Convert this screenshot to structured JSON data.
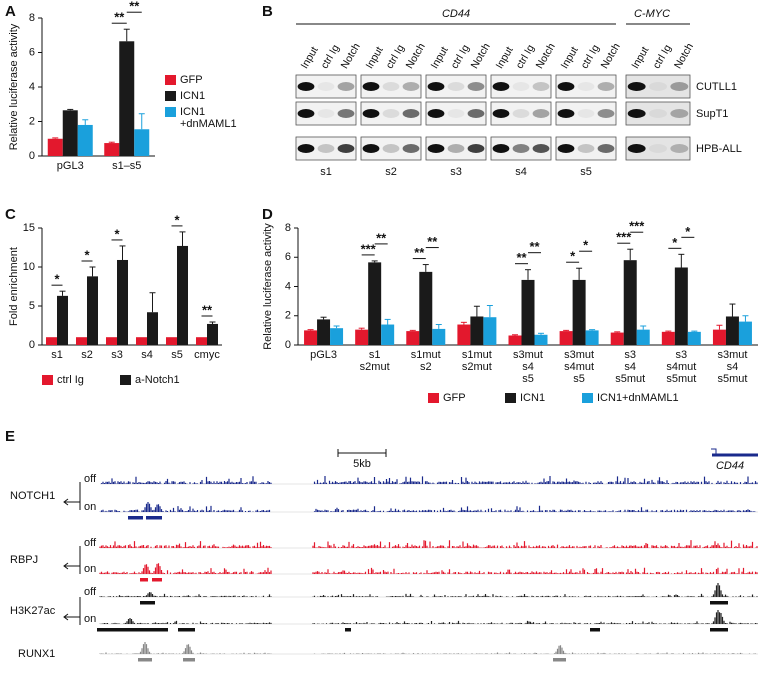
{
  "panel_labels": [
    "A",
    "B",
    "C",
    "D",
    "E"
  ],
  "chart_data": [
    {
      "type": "bar",
      "ylabel": "Relative luciferase activity",
      "categories": [
        "pGL3",
        "s1–s5"
      ],
      "ylim": [
        0,
        8
      ],
      "yticks": [
        0,
        2,
        4,
        6,
        8
      ],
      "legend": "right",
      "series": [
        {
          "name": "GFP",
          "color": "#e3182d",
          "values": [
            1.0,
            0.75
          ],
          "errors": [
            0.05,
            0.05
          ]
        },
        {
          "name": "ICN1",
          "color": "#1a1a1a",
          "values": [
            2.65,
            6.65
          ],
          "errors": [
            0.05,
            0.7
          ]
        },
        {
          "name": "ICN1\n+dnMAML1",
          "color": "#1aa0dc",
          "values": [
            1.8,
            1.55
          ],
          "errors": [
            0.3,
            0.9
          ]
        }
      ],
      "annotations": [
        "**",
        "**"
      ]
    },
    {
      "type": "bar",
      "ylabel": "Fold enrichment",
      "categories": [
        "s1",
        "s2",
        "s3",
        "s4",
        "s5",
        "cmyc"
      ],
      "ylim": [
        0,
        15
      ],
      "yticks": [
        0,
        5,
        10,
        15
      ],
      "legend": "bottom",
      "series": [
        {
          "name": "ctrl Ig",
          "color": "#e3182d",
          "values": [
            1,
            1,
            1,
            1,
            1,
            1
          ],
          "errors": [
            0,
            0,
            0,
            0,
            0,
            0
          ]
        },
        {
          "name": "a-Notch1",
          "color": "#1a1a1a",
          "values": [
            6.3,
            8.8,
            10.9,
            4.2,
            12.7,
            2.7
          ],
          "errors": [
            0.6,
            1.2,
            1.8,
            2.5,
            1.8,
            0.25
          ]
        }
      ],
      "annotations": [
        "*",
        "*",
        "*",
        "*",
        "**"
      ]
    },
    {
      "type": "bar",
      "ylabel": "Relative luciferase activity",
      "categories": [
        "pGL3",
        "s1\ns2mut",
        "s1mut\ns2",
        "s1mut\ns2mut",
        "s3mut\ns4\ns5",
        "s3mut\ns4mut\ns5",
        "s3\ns4\ns5mut",
        "s3\ns4mut\ns5mut",
        "s3mut\ns4\ns5mut"
      ],
      "ylim": [
        0,
        8
      ],
      "yticks": [
        0,
        2,
        4,
        6,
        8
      ],
      "legend": "bottom",
      "series": [
        {
          "name": "GFP",
          "color": "#e3182d",
          "values": [
            1.0,
            1.05,
            0.95,
            1.4,
            0.65,
            0.95,
            0.85,
            0.9,
            1.05
          ],
          "errors": [
            0.05,
            0.1,
            0.05,
            0.15,
            0.05,
            0.05,
            0.05,
            0.05,
            0.3
          ]
        },
        {
          "name": "ICN1",
          "color": "#1a1a1a",
          "values": [
            1.75,
            5.65,
            5.0,
            1.95,
            4.45,
            4.45,
            5.8,
            5.3,
            1.95
          ],
          "errors": [
            0.15,
            0.1,
            0.5,
            0.7,
            0.7,
            0.8,
            0.75,
            0.9,
            0.85
          ]
        },
        {
          "name": "ICN1+dnMAML1",
          "color": "#1aa0dc",
          "values": [
            1.15,
            1.4,
            1.1,
            1.9,
            0.7,
            1.0,
            1.05,
            0.9,
            1.6
          ],
          "errors": [
            0.15,
            0.35,
            0.3,
            0.8,
            0.1,
            0.05,
            0.25,
            0.05,
            0.4
          ]
        }
      ],
      "annotations": [
        "***",
        "**",
        "**",
        "**",
        "**",
        "**",
        "*",
        "*",
        "***",
        "***",
        "*",
        "*"
      ]
    }
  ],
  "gel": {
    "groups": [
      "CD44",
      "C-MYC"
    ],
    "lanes": [
      "Input",
      "ctrl Ig",
      "Notch"
    ],
    "rows": [
      "CUTLL1",
      "SupT1",
      "HPB-ALL"
    ],
    "sites": [
      "s1",
      "s2",
      "s3",
      "s4",
      "s5"
    ]
  },
  "tracks": {
    "scale": "5kb",
    "gene": "CD44",
    "states": [
      "off",
      "on"
    ],
    "factors": [
      "NOTCH1",
      "RBPJ",
      "H3K27ac",
      "RUNX1"
    ]
  }
}
